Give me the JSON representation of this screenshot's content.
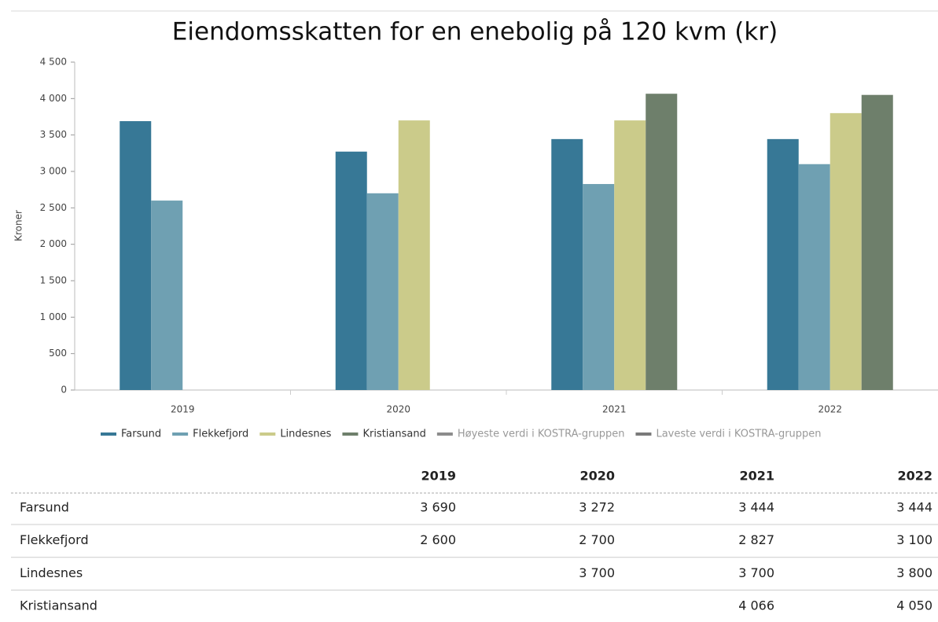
{
  "chart_data": {
    "type": "bar",
    "title": "Eiendomsskatten for en enebolig på 120 kvm (kr)",
    "y_label": "Kroner",
    "categories": [
      "2019",
      "2020",
      "2021",
      "2022"
    ],
    "series": [
      {
        "name": "Farsund",
        "color": "#377896",
        "values": [
          3690,
          3272,
          3444,
          3444
        ]
      },
      {
        "name": "Flekkefjord",
        "color": "#6fa0b2",
        "values": [
          2600,
          2700,
          2827,
          3100
        ]
      },
      {
        "name": "Lindesnes",
        "color": "#cbcb8a",
        "values": [
          null,
          3700,
          3700,
          3800
        ]
      },
      {
        "name": "Kristiansand",
        "color": "#6e7f6b",
        "values": [
          null,
          null,
          4066,
          4050
        ]
      },
      {
        "name": "Høyeste verdi i KOSTRA-gruppen",
        "color": "#8c8c8c",
        "values": [
          null,
          null,
          null,
          null
        ]
      },
      {
        "name": "Laveste verdi i KOSTRA-gruppen",
        "color": "#7a7a7a",
        "values": [
          null,
          null,
          null,
          null
        ]
      }
    ],
    "ylim": [
      0,
      4500
    ],
    "yticks": [
      0,
      500,
      {
        "value": 1000,
        "label": "1 000"
      },
      {
        "value": 1500,
        "label": "1 500"
      },
      {
        "value": 2000,
        "label": "2 000"
      },
      {
        "value": 2500,
        "label": "2 500"
      },
      {
        "value": 3000,
        "label": "3 000"
      },
      {
        "value": 3500,
        "label": "3 500"
      },
      {
        "value": 4000,
        "label": "4 000"
      },
      {
        "value": 4500,
        "label": "4 500"
      }
    ],
    "legend": "bottom"
  },
  "table": {
    "columns": [
      "2019",
      "2020",
      "2021",
      "2022"
    ],
    "rows": [
      [
        "Farsund",
        "3 690",
        "3 272",
        "3 444",
        "3 444"
      ],
      [
        "Flekkefjord",
        "2 600",
        "2 700",
        "2 827",
        "3 100"
      ],
      [
        "Lindesnes",
        null,
        "3 700",
        "3 700",
        "3 800"
      ],
      [
        "Kristiansand",
        null,
        null,
        "4 066",
        "4 050"
      ]
    ]
  }
}
